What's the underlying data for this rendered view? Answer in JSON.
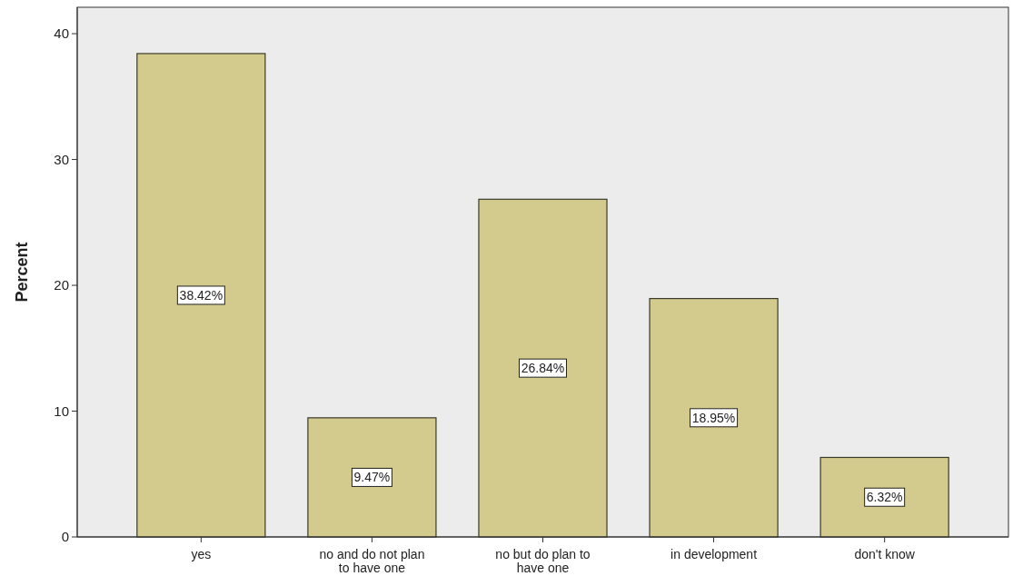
{
  "chart_data": {
    "type": "bar",
    "ylabel": "Percent",
    "categories": [
      "yes",
      "no and do not plan to have one",
      "no but do plan to have one",
      "in development",
      "don't know"
    ],
    "values": [
      38.42,
      9.47,
      26.84,
      18.95,
      6.32
    ],
    "value_labels": [
      "38.42%",
      "9.47%",
      "26.84%",
      "18.95%",
      "6.32%"
    ],
    "color": "#d3ca8e",
    "ylim": [
      0,
      42.1
    ],
    "yticks": [
      0,
      10,
      20,
      30,
      40
    ],
    "grid": false
  }
}
